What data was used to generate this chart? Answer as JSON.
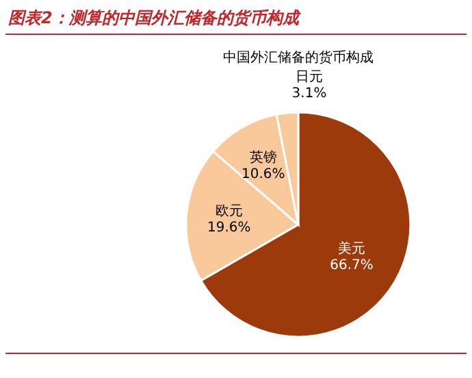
{
  "chart_data": {
    "type": "pie",
    "title": "图表2：测算的中国外汇储备的货币构成",
    "subtitle": "中国外汇储备的货币构成",
    "categories": [
      "美元",
      "欧元",
      "英镑",
      "日元"
    ],
    "values": [
      66.7,
      19.6,
      10.6,
      3.1
    ],
    "colors": [
      "#9c3a0c",
      "#f9c99c",
      "#f9c99c",
      "#f9c99c"
    ],
    "value_labels": [
      "66.7%",
      "19.6%",
      "10.6%",
      "3.1%"
    ]
  }
}
